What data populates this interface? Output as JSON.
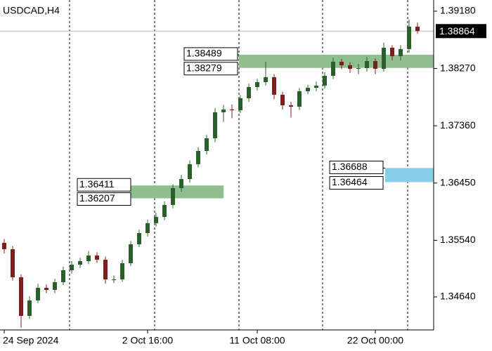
{
  "chart_data": {
    "type": "candlestick",
    "title": "USDCAD,H4",
    "categories": [
      "24 Sep 2024",
      null,
      null,
      null,
      null,
      null,
      null,
      null,
      null,
      null,
      null,
      null,
      null,
      null,
      null,
      null,
      null,
      "2 Oct 16:00",
      null,
      null,
      null,
      null,
      null,
      null,
      null,
      null,
      null,
      null,
      null,
      null,
      "11 Oct 08:00",
      null,
      null,
      null,
      null,
      null,
      null,
      null,
      null,
      null,
      null,
      null,
      null,
      null,
      "22 Oct 00:00",
      null,
      null,
      null,
      null,
      null
    ],
    "open": [
      1.355,
      1.35399,
      1.34953,
      1.34339,
      1.34585,
      1.34785,
      1.34752,
      1.34875,
      1.35064,
      1.35153,
      1.35209,
      1.35298,
      1.35232,
      1.34919,
      1.34919,
      1.35176,
      1.35477,
      1.35655,
      1.35812,
      1.35912,
      1.36102,
      1.36369,
      1.36514,
      1.36749,
      1.3696,
      1.37161,
      1.37574,
      1.37618,
      1.37607,
      1.37797,
      1.37975,
      1.38053,
      1.38132,
      1.37853,
      1.37685,
      1.37663,
      1.37908,
      1.37964,
      1.37998,
      1.38154,
      1.38377,
      1.38321,
      1.38265,
      1.38276,
      1.38388,
      1.38265,
      1.386,
      1.38466,
      1.38578,
      1.38935
    ],
    "high": [
      1.3556,
      1.3545,
      1.35,
      1.3465,
      1.3485,
      1.3484,
      1.3493,
      1.3512,
      1.3521,
      1.3526,
      1.3537,
      1.3535,
      1.3528,
      1.3498,
      1.3523,
      1.3553,
      1.3571,
      1.3587,
      1.3598,
      1.3616,
      1.3643,
      1.3658,
      1.3681,
      1.3702,
      1.3722,
      1.3764,
      1.3769,
      1.377,
      1.3785,
      1.3803,
      1.3811,
      1.3838,
      1.3818,
      1.379,
      1.3774,
      1.3796,
      1.3801,
      1.3806,
      1.3821,
      1.3844,
      1.3842,
      1.3837,
      1.3834,
      1.3845,
      1.3843,
      1.3868,
      1.3864,
      1.3864,
      1.3905,
      1.39
    ],
    "low": [
      1.3533,
      1.349,
      1.3415,
      1.3429,
      1.3454,
      1.347,
      1.347,
      1.3483,
      1.3501,
      1.351,
      1.3516,
      1.3518,
      1.3485,
      1.3486,
      1.3488,
      1.3513,
      1.3543,
      1.356,
      1.3576,
      1.3586,
      1.3605,
      1.3631,
      1.3646,
      1.367,
      1.369,
      1.371,
      1.3742,
      1.3748,
      1.3756,
      1.3774,
      1.3792,
      1.38,
      1.3778,
      1.3762,
      1.3749,
      1.3761,
      1.3786,
      1.3791,
      1.3795,
      1.381,
      1.3826,
      1.382,
      1.3818,
      1.3822,
      1.3818,
      1.3822,
      1.384,
      1.384,
      1.3852,
      1.3882
    ],
    "close": [
      1.35399,
      1.34953,
      1.34339,
      1.34585,
      1.34785,
      1.34752,
      1.34875,
      1.35064,
      1.35153,
      1.35209,
      1.35298,
      1.35232,
      1.34919,
      1.34919,
      1.35176,
      1.35477,
      1.35655,
      1.35812,
      1.35912,
      1.36102,
      1.36369,
      1.36514,
      1.36749,
      1.3696,
      1.37161,
      1.37574,
      1.37618,
      1.37607,
      1.37797,
      1.37975,
      1.38053,
      1.38132,
      1.37853,
      1.37685,
      1.37663,
      1.37908,
      1.37964,
      1.37998,
      1.38154,
      1.38377,
      1.38321,
      1.38265,
      1.38276,
      1.38388,
      1.38265,
      1.386,
      1.38466,
      1.38578,
      1.38935,
      1.38864
    ],
    "up_color": "#2c5e2c",
    "down_color": "#7d1f1f",
    "ylim": [
      1.34116,
      1.39358
    ],
    "yticks": [
      {
        "value": 1.3464,
        "label": "1.34640"
      },
      {
        "value": 1.3554,
        "label": "1.35540"
      },
      {
        "value": 1.3645,
        "label": "1.36450"
      },
      {
        "value": 1.3736,
        "label": "1.37360"
      },
      {
        "value": 1.3827,
        "label": "1.38270"
      },
      {
        "value": 1.3918,
        "label": "1.39180"
      }
    ],
    "current_price": {
      "value": 1.38864,
      "label": "1.38864"
    },
    "zones": [
      {
        "top": {
          "value": 1.38489,
          "label": "1.38489"
        },
        "bottom": {
          "value": 1.38279,
          "label": "1.38279"
        },
        "color": "#8fbf8f"
      },
      {
        "top": {
          "value": 1.36411,
          "label": "1.36411"
        },
        "bottom": {
          "value": 1.36207,
          "label": "1.36207"
        },
        "color": "#8fbf8f"
      },
      {
        "top": {
          "value": 1.36688,
          "label": "1.36688"
        },
        "bottom": {
          "value": 1.36464,
          "label": "1.36464"
        },
        "color": "#87ceeb"
      }
    ]
  }
}
